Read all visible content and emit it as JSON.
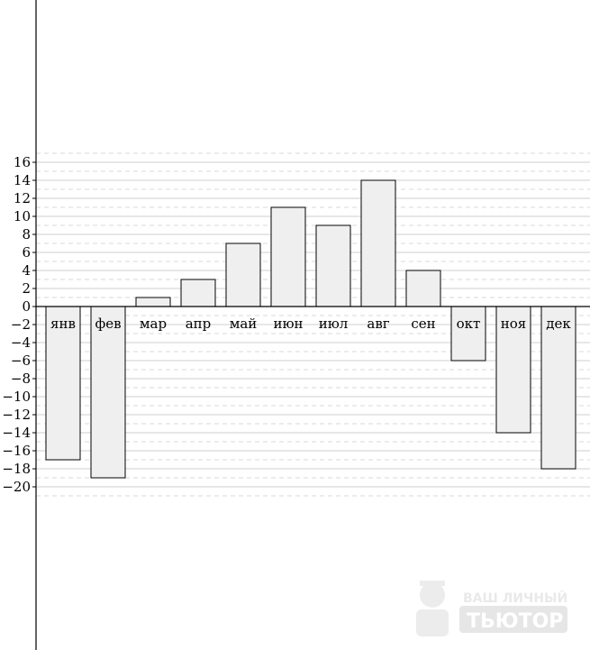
{
  "chart_data": {
    "type": "bar",
    "title": "",
    "xlabel": "",
    "ylabel": "",
    "categories": [
      "янв",
      "фев",
      "мар",
      "апр",
      "май",
      "июн",
      "июл",
      "авг",
      "сен",
      "окт",
      "ноя",
      "дек"
    ],
    "values": [
      -17,
      -19,
      1,
      3,
      7,
      11,
      9,
      14,
      4,
      -6,
      -14,
      -18
    ],
    "ylim": [
      -21,
      17
    ],
    "yticks": [
      16,
      14,
      12,
      10,
      8,
      6,
      4,
      2,
      0,
      -2,
      -4,
      -6,
      -8,
      -10,
      -12,
      -14,
      -16,
      -18,
      -20
    ],
    "ytick_labels": [
      "16",
      "14",
      "12",
      "10",
      "8",
      "6",
      "4",
      "2",
      "0",
      "−2",
      "−4",
      "−6",
      "−8",
      "−10",
      "−12",
      "−14",
      "−16",
      "−18",
      "−20"
    ],
    "grid": true,
    "bar_fill": "#efefef",
    "bar_stroke": "#000000"
  },
  "watermark": {
    "line1": "ВАШ ЛИЧНЫЙ",
    "line2": "ТЬЮТОР",
    "icon": "tutor-mascot-icon"
  }
}
